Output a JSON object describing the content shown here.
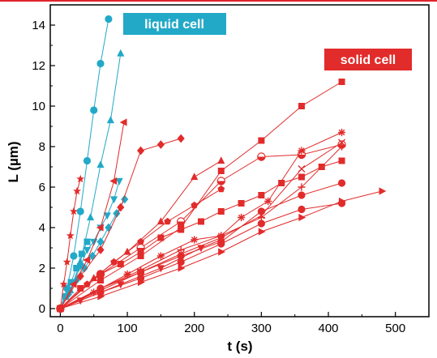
{
  "chart_data": {
    "type": "scatter",
    "xlabel": "t  (s)",
    "ylabel": "L (µm)",
    "xlim": [
      -15,
      550
    ],
    "ylim": [
      -0.4,
      15
    ],
    "xticks": [
      0,
      100,
      200,
      300,
      400,
      500
    ],
    "yticks": [
      0,
      2,
      4,
      6,
      8,
      10,
      12,
      14
    ],
    "grid": false,
    "colors": {
      "liquid": "#22a9c8",
      "solid": "#e22b2b"
    },
    "legend": [
      {
        "text": "liquid cell",
        "color": "#22a9c8",
        "position": "top-left"
      },
      {
        "text": "solid cell",
        "color": "#e22b2b",
        "position": "top-right"
      }
    ],
    "series": [
      {
        "group": "liquid",
        "marker": "circle",
        "x": [
          0,
          10,
          20,
          30,
          40,
          50,
          60,
          72
        ],
        "y": [
          0,
          1.0,
          2.6,
          4.8,
          7.3,
          9.8,
          12.1,
          14.3
        ]
      },
      {
        "group": "liquid",
        "marker": "triangle-up",
        "x": [
          0,
          15,
          30,
          45,
          60,
          75,
          90
        ],
        "y": [
          0,
          0.9,
          2.3,
          4.5,
          7.1,
          9.3,
          12.6
        ]
      },
      {
        "group": "liquid",
        "marker": "triangle-down",
        "x": [
          0,
          10,
          20,
          30,
          40,
          50,
          60,
          70,
          80,
          88
        ],
        "y": [
          0,
          0.6,
          1.3,
          2.1,
          2.9,
          3.3,
          4.0,
          4.6,
          5.4,
          6.3
        ]
      },
      {
        "group": "liquid",
        "marker": "diamond",
        "x": [
          0,
          12,
          24,
          36,
          48,
          60,
          72,
          84,
          96
        ],
        "y": [
          0,
          0.7,
          1.4,
          2.0,
          2.6,
          3.3,
          4.0,
          4.7,
          5.4
        ]
      },
      {
        "group": "liquid",
        "marker": "square",
        "x": [
          0,
          8,
          16,
          24,
          32,
          40
        ],
        "y": [
          0,
          0.6,
          1.3,
          2.0,
          2.7,
          3.3
        ]
      },
      {
        "group": "solid",
        "marker": "star",
        "x": [
          0,
          5,
          10,
          15,
          20,
          25,
          30
        ],
        "y": [
          0,
          1.2,
          2.3,
          3.6,
          4.8,
          5.8,
          6.4
        ]
      },
      {
        "group": "solid",
        "marker": "triangle-left",
        "x": [
          0,
          20,
          40,
          60,
          80,
          95
        ],
        "y": [
          0,
          1.2,
          2.4,
          4.0,
          6.3,
          9.2
        ]
      },
      {
        "group": "solid",
        "marker": "diamond",
        "x": [
          0,
          30,
          60,
          90,
          120,
          150,
          180
        ],
        "y": [
          0,
          1.6,
          2.9,
          5.0,
          7.8,
          8.1,
          8.4
        ]
      },
      {
        "group": "solid",
        "marker": "triangle-up",
        "x": [
          0,
          50,
          100,
          150,
          200,
          240
        ],
        "y": [
          0,
          1.5,
          2.8,
          4.3,
          6.5,
          7.3
        ]
      },
      {
        "group": "solid",
        "marker": "half-circle",
        "x": [
          0,
          60,
          120,
          180,
          240,
          300,
          360,
          420
        ],
        "y": [
          0,
          1.7,
          3.0,
          4.3,
          6.3,
          7.5,
          7.6,
          8.1
        ]
      },
      {
        "group": "solid",
        "marker": "square",
        "x": [
          0,
          30,
          60,
          90,
          120,
          150,
          180,
          210,
          240,
          270,
          300,
          330,
          360,
          390,
          420
        ],
        "y": [
          0,
          1.0,
          1.7,
          2.2,
          2.8,
          3.5,
          3.9,
          4.3,
          4.8,
          5.2,
          5.6,
          6.2,
          6.5,
          7.0,
          7.3
        ]
      },
      {
        "group": "solid",
        "marker": "square",
        "x": [
          0,
          60,
          120,
          180,
          240,
          300,
          360,
          420
        ],
        "y": [
          0,
          1.4,
          2.6,
          4.0,
          6.8,
          8.3,
          10.0,
          11.2
        ]
      },
      {
        "group": "solid",
        "marker": "pentagon",
        "x": [
          0,
          40,
          80,
          120,
          160,
          200,
          240
        ],
        "y": [
          0,
          1.2,
          2.3,
          3.3,
          4.3,
          5.1,
          5.9
        ]
      },
      {
        "group": "solid",
        "marker": "asterisk",
        "x": [
          0,
          50,
          100,
          150,
          200,
          240,
          270,
          310,
          360,
          420
        ],
        "y": [
          0,
          0.8,
          1.7,
          2.6,
          3.4,
          3.6,
          4.5,
          5.3,
          7.8,
          8.7
        ]
      },
      {
        "group": "solid",
        "marker": "x-cross",
        "x": [
          0,
          60,
          120,
          180,
          240,
          300,
          360,
          420
        ],
        "y": [
          0,
          0.9,
          1.8,
          2.7,
          3.5,
          4.6,
          6.9,
          8.2
        ]
      },
      {
        "group": "solid",
        "marker": "plus",
        "x": [
          0,
          60,
          120,
          180,
          240,
          300,
          360,
          420
        ],
        "y": [
          0,
          1.0,
          1.9,
          2.9,
          3.6,
          4.5,
          6.0,
          8.0
        ]
      },
      {
        "group": "solid",
        "marker": "circle",
        "x": [
          0,
          60,
          120,
          180,
          240,
          300,
          360,
          420
        ],
        "y": [
          0,
          1.0,
          1.8,
          2.6,
          3.3,
          4.8,
          5.6,
          6.2
        ]
      },
      {
        "group": "solid",
        "marker": "triangle-down",
        "x": [
          0,
          30,
          60,
          90,
          120,
          150,
          180,
          210,
          240
        ],
        "y": [
          0,
          0.4,
          0.8,
          1.2,
          1.6,
          2.0,
          2.5,
          3.0,
          3.4
        ]
      },
      {
        "group": "solid",
        "marker": "circle",
        "x": [
          0,
          60,
          120,
          180,
          240,
          300,
          360,
          420
        ],
        "y": [
          0,
          0.8,
          1.5,
          2.3,
          3.2,
          4.2,
          4.9,
          5.2
        ]
      },
      {
        "group": "solid",
        "marker": "triangle-right",
        "x": [
          0,
          60,
          120,
          180,
          240,
          300,
          360,
          420,
          480
        ],
        "y": [
          0,
          0.6,
          1.3,
          2.0,
          2.8,
          3.8,
          4.5,
          5.3,
          5.8
        ]
      }
    ]
  }
}
